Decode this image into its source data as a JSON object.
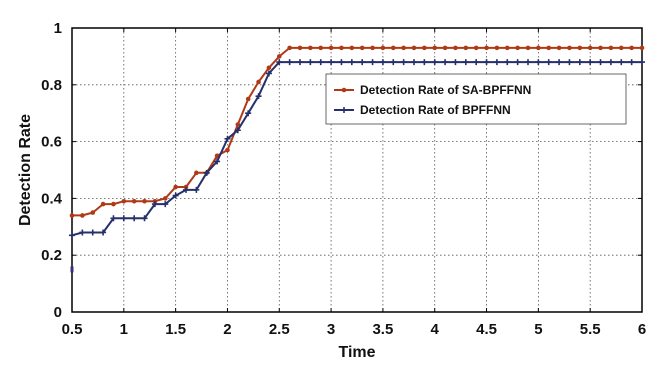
{
  "chart_data": {
    "type": "line",
    "xlabel": "Time",
    "ylabel": "Detection Rate",
    "xlim": [
      0.5,
      6
    ],
    "ylim": [
      0,
      1
    ],
    "xticks": [
      0.5,
      1,
      1.5,
      2,
      2.5,
      3,
      3.5,
      4,
      4.5,
      5,
      5.5,
      6
    ],
    "xtick_labels": [
      "0.5",
      "1",
      "1.5",
      "2",
      "2.5",
      "3",
      "3.5",
      "4",
      "4.5",
      "5",
      "5.5",
      "6"
    ],
    "yticks": [
      0,
      0.2,
      0.4,
      0.6,
      0.8,
      1
    ],
    "ytick_labels": [
      "0",
      "0.2",
      "0.4",
      "0.6",
      "0.8",
      "1"
    ],
    "grid": true,
    "legend_position": "top-right",
    "series": [
      {
        "name": "Detection Rate of SA-BPFFNN",
        "color": "#b03a16",
        "marker": "dot",
        "x": [
          0.5,
          0.6,
          0.7,
          0.8,
          0.9,
          1.0,
          1.1,
          1.2,
          1.3,
          1.4,
          1.5,
          1.6,
          1.7,
          1.8,
          1.9,
          2.0,
          2.1,
          2.2,
          2.3,
          2.4,
          2.5,
          2.6,
          2.7,
          2.8,
          2.9,
          3.0,
          3.1,
          3.2,
          3.3,
          3.4,
          3.5,
          3.6,
          3.7,
          3.8,
          3.9,
          4.0,
          4.1,
          4.2,
          4.3,
          4.4,
          4.5,
          4.6,
          4.7,
          4.8,
          4.9,
          5.0,
          5.1,
          5.2,
          5.3,
          5.4,
          5.5,
          5.6,
          5.7,
          5.8,
          5.9,
          6.0
        ],
        "y": [
          0.34,
          0.34,
          0.35,
          0.38,
          0.38,
          0.39,
          0.39,
          0.39,
          0.39,
          0.4,
          0.44,
          0.44,
          0.49,
          0.49,
          0.55,
          0.57,
          0.66,
          0.75,
          0.81,
          0.86,
          0.9,
          0.93,
          0.93,
          0.93,
          0.93,
          0.93,
          0.93,
          0.93,
          0.93,
          0.93,
          0.93,
          0.93,
          0.93,
          0.93,
          0.93,
          0.93,
          0.93,
          0.93,
          0.93,
          0.93,
          0.93,
          0.93,
          0.93,
          0.93,
          0.93,
          0.93,
          0.93,
          0.93,
          0.93,
          0.93,
          0.93,
          0.93,
          0.93,
          0.93,
          0.93,
          0.93
        ]
      },
      {
        "name": "Detection Rate of BPFFNN",
        "color": "#26306a",
        "marker": "plus",
        "x": [
          0.5,
          0.6,
          0.7,
          0.8,
          0.9,
          1.0,
          1.1,
          1.2,
          1.3,
          1.4,
          1.5,
          1.6,
          1.7,
          1.8,
          1.9,
          2.0,
          2.1,
          2.2,
          2.3,
          2.4,
          2.5,
          2.6,
          2.7,
          2.8,
          2.9,
          3.0,
          3.1,
          3.2,
          3.3,
          3.4,
          3.5,
          3.6,
          3.7,
          3.8,
          3.9,
          4.0,
          4.1,
          4.2,
          4.3,
          4.4,
          4.5,
          4.6,
          4.7,
          4.8,
          4.9,
          5.0,
          5.1,
          5.2,
          5.3,
          5.4,
          5.5,
          5.6,
          5.7,
          5.8,
          5.9,
          6.0
        ],
        "y": [
          0.27,
          0.28,
          0.28,
          0.28,
          0.33,
          0.33,
          0.33,
          0.33,
          0.38,
          0.38,
          0.41,
          0.43,
          0.43,
          0.49,
          0.53,
          0.61,
          0.64,
          0.7,
          0.76,
          0.84,
          0.88,
          0.88,
          0.88,
          0.88,
          0.88,
          0.88,
          0.88,
          0.88,
          0.88,
          0.88,
          0.88,
          0.88,
          0.88,
          0.88,
          0.88,
          0.88,
          0.88,
          0.88,
          0.88,
          0.88,
          0.88,
          0.88,
          0.88,
          0.88,
          0.88,
          0.88,
          0.88,
          0.88,
          0.88,
          0.88,
          0.88,
          0.88,
          0.88,
          0.88,
          0.88,
          0.88
        ]
      }
    ],
    "stray_marker": {
      "x": 0.5,
      "y": 0.15,
      "color": "#3a2f80"
    }
  }
}
